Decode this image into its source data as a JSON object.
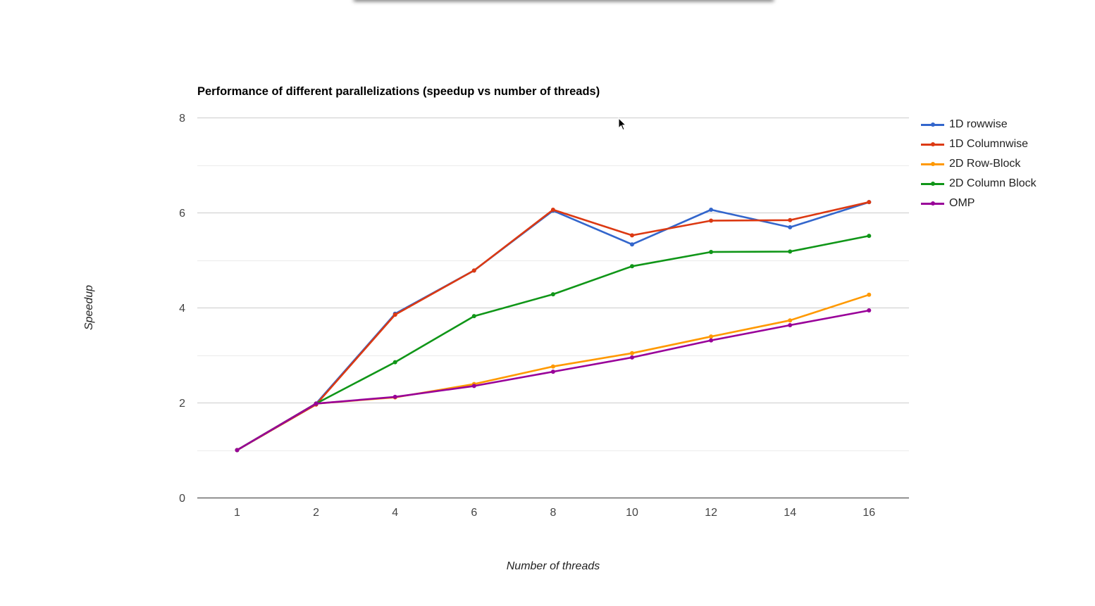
{
  "chart_data": {
    "type": "line",
    "title": "Performance of different parallelizations (speedup vs number of threads)",
    "xlabel": "Number of threads",
    "ylabel": "Speedup",
    "categories": [
      "1",
      "2",
      "4",
      "6",
      "8",
      "10",
      "12",
      "14",
      "16"
    ],
    "ylim": [
      0,
      8
    ],
    "yticks": [
      "0",
      "2",
      "4",
      "6",
      "8"
    ],
    "grid": true,
    "legend_position": "right",
    "series": [
      {
        "name": "1D rowwise",
        "color": "#3366cc",
        "values": [
          1.0,
          1.98,
          3.87,
          4.78,
          6.04,
          5.33,
          6.06,
          5.69,
          6.22
        ]
      },
      {
        "name": "1D Columnwise",
        "color": "#dc3912",
        "values": [
          1.0,
          1.96,
          3.85,
          4.78,
          6.06,
          5.52,
          5.83,
          5.84,
          6.22
        ]
      },
      {
        "name": "2D Row-Block",
        "color": "#ff9900",
        "values": [
          1.0,
          1.98,
          2.11,
          2.39,
          2.76,
          3.04,
          3.39,
          3.73,
          4.27
        ]
      },
      {
        "name": "2D Column Block",
        "color": "#109618",
        "values": [
          1.0,
          1.98,
          2.85,
          3.82,
          4.28,
          4.87,
          5.17,
          5.18,
          5.51
        ]
      },
      {
        "name": "OMP",
        "color": "#990099",
        "values": [
          1.0,
          1.98,
          2.12,
          2.35,
          2.65,
          2.95,
          3.31,
          3.63,
          3.94
        ]
      }
    ]
  }
}
